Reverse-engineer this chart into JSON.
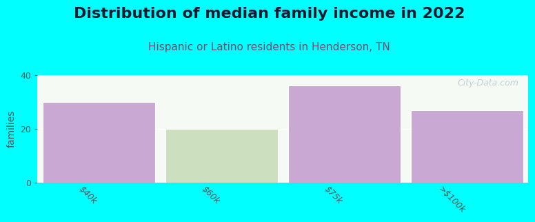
{
  "title": "Distribution of median family income in 2022",
  "subtitle": "Hispanic or Latino residents in Henderson, TN",
  "categories": [
    "$40k",
    "$60k",
    "$75k",
    ">$100k"
  ],
  "values": [
    30,
    20,
    36,
    27
  ],
  "bar_colors": [
    "#c9a8d4",
    "#cce0c0",
    "#c9a8d4",
    "#c9a8d4"
  ],
  "background_color": "#00ffff",
  "plot_bg_color": "#f5faf5",
  "ylabel": "families",
  "ylim": [
    0,
    40
  ],
  "yticks": [
    0,
    20,
    40
  ],
  "title_fontsize": 16,
  "subtitle_fontsize": 11,
  "title_color": "#1a1a2e",
  "subtitle_color": "#7a4a6a",
  "tick_label_color": "#555555",
  "bar_width": 0.92,
  "watermark": "City-Data.com",
  "watermark_color": "#b8c8cc"
}
